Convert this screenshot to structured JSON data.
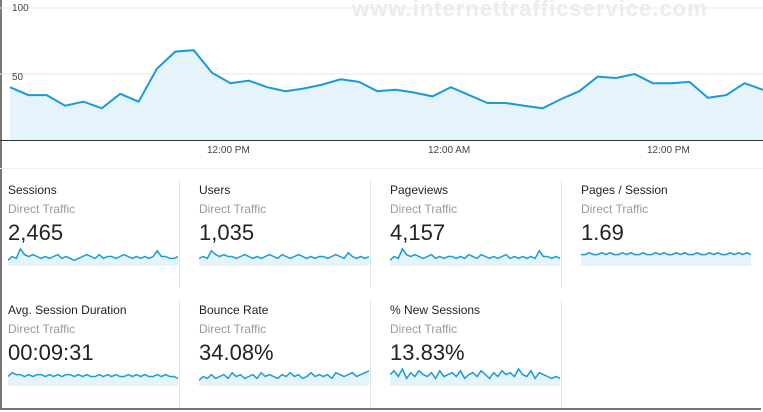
{
  "watermark": "www.internettrafficservice.com",
  "main_chart": {
    "y_ticks": [
      "100",
      "50"
    ],
    "x_ticks": [
      "12:00 PM",
      "12:00 AM",
      "12:00 PM"
    ],
    "values": [
      40,
      34,
      34,
      26,
      29,
      24,
      35,
      29,
      54,
      67,
      68,
      51,
      43,
      45,
      40,
      37,
      39,
      42,
      46,
      44,
      37,
      38,
      36,
      33,
      40,
      34,
      28,
      28,
      26,
      24,
      31,
      37,
      48,
      47,
      50,
      43,
      43,
      44,
      32,
      34,
      43,
      38
    ],
    "ylim": [
      0,
      100
    ],
    "line_color": "#1a9ad6",
    "fill_color": "#e5f4fb"
  },
  "metrics": [
    {
      "title": "Sessions",
      "segment": "Direct Traffic",
      "value": "2,465",
      "spark": [
        3,
        5,
        4,
        9,
        6,
        5,
        6,
        5,
        4,
        5,
        4,
        5,
        6,
        4,
        5,
        4,
        3,
        4,
        5,
        6,
        5,
        4,
        6,
        4,
        5,
        5,
        4,
        5,
        6,
        5,
        4,
        5,
        4,
        5,
        4,
        5,
        8,
        5,
        5,
        4,
        4,
        5
      ]
    },
    {
      "title": "Users",
      "segment": "Direct Traffic",
      "value": "1,035",
      "spark": [
        4,
        5,
        4,
        8,
        6,
        5,
        6,
        5,
        5,
        4,
        5,
        6,
        5,
        4,
        5,
        4,
        5,
        6,
        5,
        4,
        6,
        5,
        4,
        5,
        6,
        5,
        4,
        5,
        4,
        5,
        5,
        4,
        5,
        6,
        5,
        4,
        7,
        5,
        4,
        5,
        4,
        5
      ]
    },
    {
      "title": "Pageviews",
      "segment": "Direct Traffic",
      "value": "4,157",
      "spark": [
        3,
        5,
        4,
        9,
        6,
        5,
        6,
        5,
        4,
        5,
        6,
        4,
        5,
        4,
        5,
        5,
        4,
        5,
        4,
        6,
        5,
        4,
        6,
        5,
        4,
        5,
        4,
        5,
        6,
        4,
        5,
        4,
        5,
        4,
        5,
        4,
        8,
        5,
        5,
        4,
        5,
        4
      ]
    },
    {
      "title": "Pages / Session",
      "segment": "Direct Traffic",
      "value": "1.69",
      "spark": [
        6,
        6,
        7,
        6,
        6,
        7,
        6,
        7,
        6,
        6,
        7,
        6,
        7,
        6,
        6,
        7,
        6,
        6,
        7,
        6,
        7,
        6,
        6,
        7,
        6,
        7,
        6,
        6,
        7,
        6,
        6,
        7,
        6,
        7,
        6,
        6,
        7,
        6,
        7,
        6,
        7,
        6
      ]
    },
    {
      "title": "Avg. Session Duration",
      "segment": "Direct Traffic",
      "value": "00:09:31",
      "spark": [
        5,
        7,
        6,
        6,
        5,
        6,
        5,
        6,
        6,
        5,
        6,
        5,
        6,
        5,
        6,
        6,
        5,
        6,
        5,
        6,
        5,
        5,
        6,
        5,
        6,
        5,
        6,
        5,
        5,
        6,
        5,
        6,
        5,
        6,
        5,
        5,
        6,
        5,
        6,
        5,
        5,
        4
      ]
    },
    {
      "title": "Bounce Rate",
      "segment": "Direct Traffic",
      "value": "34.08%",
      "spark": [
        3,
        5,
        4,
        6,
        4,
        5,
        6,
        4,
        7,
        5,
        6,
        4,
        5,
        6,
        4,
        7,
        5,
        6,
        5,
        4,
        6,
        5,
        7,
        5,
        6,
        4,
        5,
        7,
        5,
        6,
        5,
        6,
        4,
        7,
        6,
        5,
        6,
        7,
        5,
        6,
        7,
        8
      ]
    },
    {
      "title": "% New Sessions",
      "segment": "Direct Traffic",
      "value": "13.83%",
      "spark": [
        6,
        8,
        5,
        9,
        4,
        7,
        5,
        8,
        6,
        5,
        7,
        4,
        8,
        5,
        6,
        7,
        5,
        8,
        4,
        6,
        7,
        5,
        8,
        6,
        4,
        7,
        5,
        8,
        6,
        7,
        5,
        9,
        6,
        5,
        8,
        4,
        7,
        6,
        5,
        4,
        5,
        4
      ]
    }
  ]
}
